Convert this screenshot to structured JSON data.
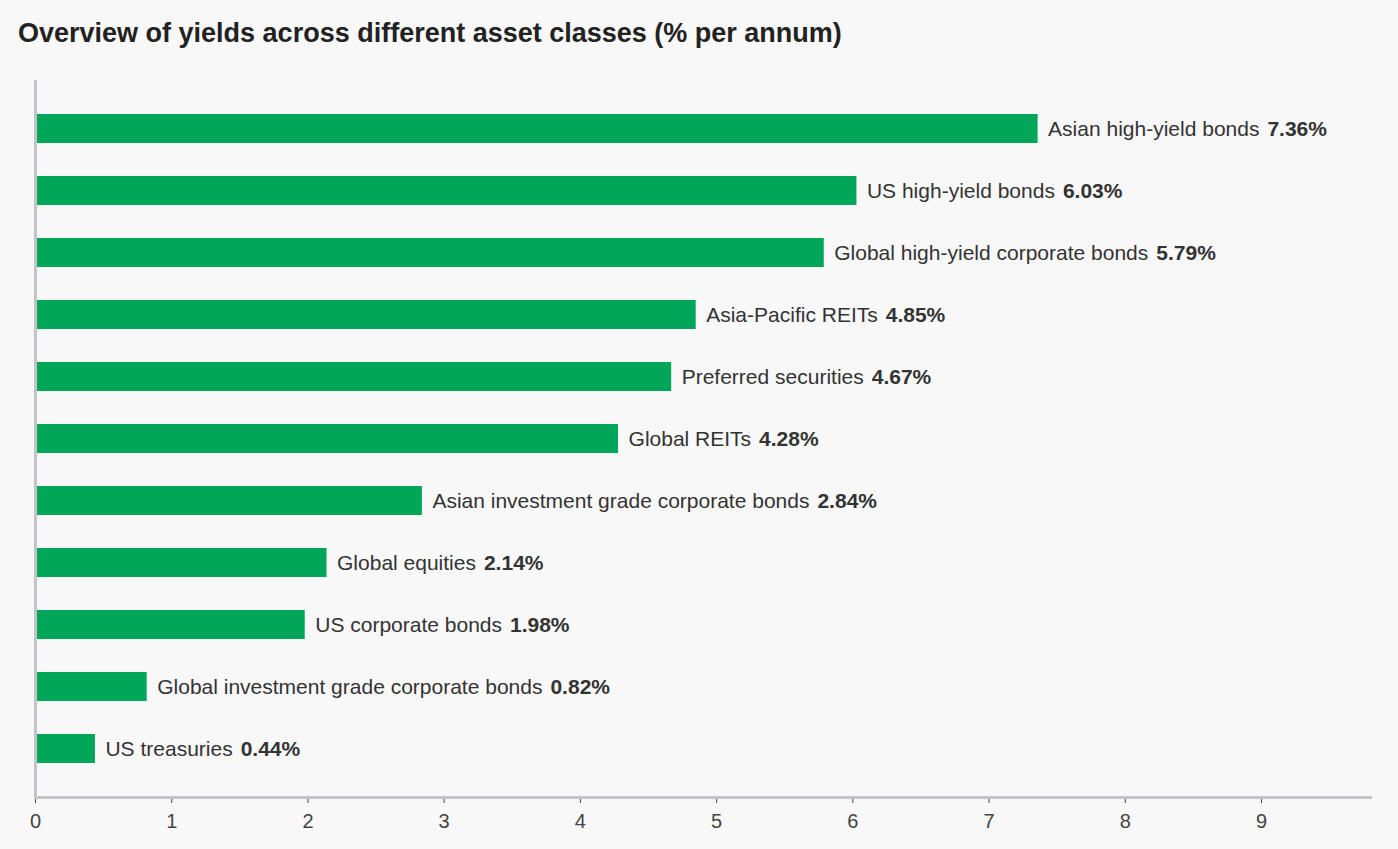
{
  "chart_data": {
    "type": "bar",
    "orientation": "horizontal",
    "title": "Overview of yields across different asset classes (% per annum)",
    "categories": [
      "Asian high-yield bonds",
      "US high-yield bonds",
      "Global high-yield corporate bonds",
      "Asia-Pacific REITs",
      "Preferred securities",
      "Global REITs",
      "Asian investment grade corporate bonds",
      "Global equities",
      "US corporate bonds",
      "Global investment grade corporate bonds",
      "US treasuries"
    ],
    "values": [
      7.36,
      6.03,
      5.79,
      4.85,
      4.67,
      4.28,
      2.84,
      2.14,
      1.98,
      0.82,
      0.44
    ],
    "value_labels": [
      "7.36%",
      "6.03%",
      "5.79%",
      "4.85%",
      "4.67%",
      "4.28%",
      "2.84%",
      "2.14%",
      "1.98%",
      "0.82%",
      "0.44%"
    ],
    "color": "#00a758",
    "xlim": [
      0,
      9.8
    ],
    "xticks": [
      0,
      1,
      2,
      3,
      4,
      5,
      6,
      7,
      8,
      9
    ],
    "grid": false,
    "data_labels": true,
    "tick_labels": "x"
  }
}
